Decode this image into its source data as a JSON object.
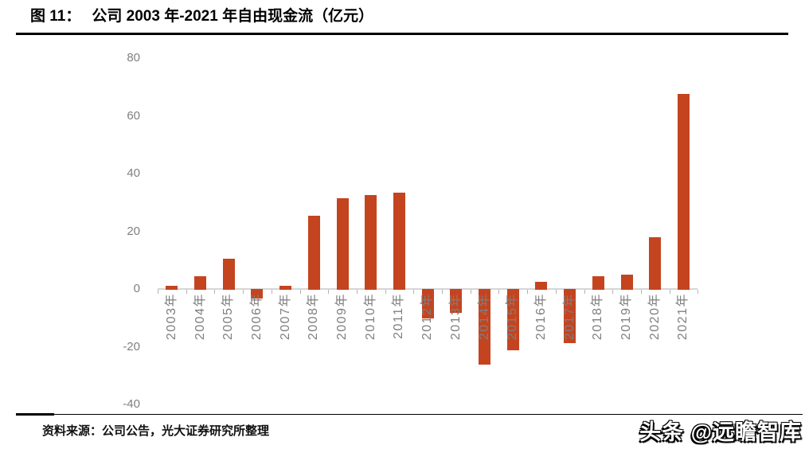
{
  "figure": {
    "label": "图 11：",
    "title": "公司 2003 年-2021 年自由现金流（亿元）",
    "source": "资料来源：公司公告，光大证券研究所整理",
    "watermark": "头条 @远瞻智库"
  },
  "chart_data": {
    "type": "bar",
    "title": "公司 2003 年-2021 年自由现金流（亿元）",
    "categories": [
      "2003年",
      "2004年",
      "2005年",
      "2006年",
      "2007年",
      "2008年",
      "2009年",
      "2010年",
      "2011年",
      "2012年",
      "2013年",
      "2014年",
      "2015年",
      "2016年",
      "2017年",
      "2018年",
      "2019年",
      "2020年",
      "2021年"
    ],
    "values": [
      1,
      4.5,
      10.5,
      -3,
      1,
      25.5,
      31.5,
      32.5,
      33.5,
      -10,
      -8,
      -26,
      -21,
      2.5,
      -18.5,
      4.5,
      5,
      18,
      67.5
    ],
    "xlabel": "",
    "ylabel": "",
    "ylim": [
      -40,
      80
    ],
    "yticks": [
      80,
      60,
      40,
      20,
      0,
      -20,
      -40
    ],
    "grid": false,
    "legend": false,
    "bar_color": "#c44420",
    "axis_color": "#d6d6d6",
    "tick_color": "#b3b3b3",
    "axis_label_color": "#7f7f7f"
  }
}
